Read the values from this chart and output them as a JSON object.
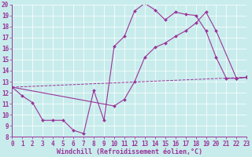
{
  "bg_color": "#c8ecec",
  "line_color": "#993399",
  "xlabel": "Windchill (Refroidissement éolien,°C)",
  "xlim": [
    0,
    23
  ],
  "ylim": [
    8,
    20
  ],
  "xticks": [
    0,
    1,
    2,
    3,
    4,
    5,
    6,
    7,
    8,
    9,
    10,
    11,
    12,
    13,
    14,
    15,
    16,
    17,
    18,
    19,
    20,
    21,
    22,
    23
  ],
  "yticks": [
    8,
    9,
    10,
    11,
    12,
    13,
    14,
    15,
    16,
    17,
    18,
    19,
    20
  ],
  "line1_x": [
    0,
    1,
    2,
    3,
    4,
    5,
    6,
    7,
    8,
    9,
    10,
    11,
    12,
    13,
    14,
    15,
    16,
    17,
    18,
    19,
    20,
    21,
    22,
    23
  ],
  "line1_y": [
    12.5,
    11.7,
    11.1,
    9.5,
    9.5,
    9.5,
    8.6,
    8.3,
    12.2,
    9.5,
    16.2,
    17.1,
    19.4,
    20.1,
    19.5,
    18.6,
    19.3,
    19.1,
    19.0,
    17.6,
    15.2,
    13.3,
    13.3,
    13.4
  ],
  "line2_x": [
    0,
    10,
    11,
    12,
    13,
    14,
    15,
    16,
    17,
    18,
    19,
    20,
    22,
    23
  ],
  "line2_y": [
    12.5,
    10.8,
    11.4,
    13.0,
    15.2,
    16.1,
    16.5,
    17.1,
    17.6,
    18.3,
    19.3,
    17.6,
    13.3,
    13.4
  ],
  "line3_x": [
    0,
    23
  ],
  "line3_y": [
    12.5,
    13.4
  ],
  "marker_size": 2.0,
  "line_width": 0.8,
  "font_size_label": 6,
  "font_size_tick": 5.5
}
